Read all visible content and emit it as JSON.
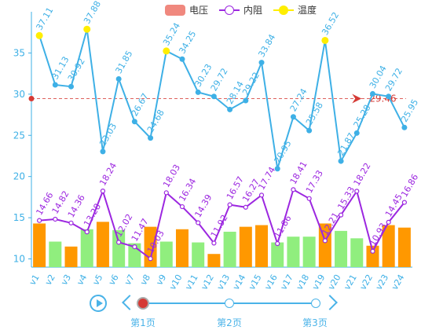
{
  "chart_data": {
    "type": "bar",
    "categories": [
      "v1",
      "v2",
      "v3",
      "v4",
      "v5",
      "v6",
      "v7",
      "v8",
      "v9",
      "v10",
      "v11",
      "v12",
      "v13",
      "v14",
      "v15",
      "v16",
      "v17",
      "v18",
      "v19",
      "v20",
      "v21",
      "v22",
      "v23",
      "v24"
    ],
    "ylim": [
      9,
      40
    ],
    "yticks": [
      10,
      15,
      20,
      25,
      30,
      35
    ],
    "grid": false,
    "legend_position": "top-center",
    "series": [
      {
        "name": "电压",
        "type": "bar",
        "color": "#ff9800",
        "alt_color": "#90ee7e",
        "values": [
          14.3,
          12.1,
          11.5,
          13.6,
          14.5,
          13.5,
          11.9,
          13.9,
          12.1,
          13.6,
          12.0,
          10.6,
          13.3,
          13.9,
          14.1,
          12.0,
          12.7,
          12.7,
          14.3,
          13.4,
          12.5,
          11.6,
          14.1,
          13.8
        ],
        "alt_categories": [
          "v2",
          "v4",
          "v6",
          "v7",
          "v9",
          "v11",
          "v13",
          "v16",
          "v17",
          "v18",
          "v20",
          "v21"
        ]
      },
      {
        "name": "内阻",
        "type": "line",
        "color": "#9c27e0",
        "values": [
          14.66,
          14.82,
          14.36,
          13.28,
          18.24,
          12.02,
          11.47,
          10.03,
          18.03,
          16.34,
          14.39,
          11.92,
          16.57,
          16.27,
          17.74,
          11.86,
          18.41,
          17.33,
          12.21,
          15.33,
          18.22,
          10.93,
          14.45,
          16.86
        ],
        "labels": [
          "14.66",
          "14.82",
          "14.36",
          "13.28",
          "18.24",
          "12.02",
          "11.47",
          "10.03",
          "18.03",
          "16.34",
          "14.39",
          "11.92",
          "16.57",
          "16.27",
          "17.74",
          "11.86",
          "18.41",
          "17.33",
          "12.21",
          "15.33",
          "18.22",
          "10.93",
          "14.45",
          "16.86"
        ]
      },
      {
        "name": "温度",
        "type": "line",
        "color": "#3eb0e6",
        "marker_color": "#ffee00",
        "values": [
          37.11,
          31.13,
          30.92,
          37.88,
          23.03,
          31.85,
          26.67,
          24.68,
          35.24,
          34.25,
          30.23,
          29.72,
          28.14,
          29.22,
          33.84,
          20.95,
          27.24,
          25.58,
          36.52,
          21.87,
          25.28,
          30.04,
          29.72,
          25.95
        ],
        "labels": [
          "37.11",
          "31.13",
          "30.92",
          "37.88",
          "23.03",
          "31.85",
          "26.67",
          "24.68",
          "35.24",
          "34.25",
          "30.23",
          "29.72",
          "28.14",
          "29.22",
          "33.84",
          "20.95",
          "27.24",
          "25.58",
          "36.52",
          "21.87",
          "25.28",
          "30.04",
          "29.72",
          "25.95"
        ],
        "highlight_categories": [
          "v1",
          "v4",
          "v9",
          "v19"
        ]
      }
    ],
    "markline": {
      "value": 29.46,
      "label": "29.46",
      "color": "#d53a35"
    }
  },
  "legend": {
    "items": [
      {
        "label": "电压",
        "kind": "bar",
        "color": "#f0887e"
      },
      {
        "label": "内阻",
        "kind": "line",
        "color": "#9c27e0"
      },
      {
        "label": "温度",
        "kind": "line",
        "color": "#ffee00"
      }
    ]
  },
  "timeline": {
    "pages": [
      "第1页",
      "第2页",
      "第3页"
    ],
    "active_index": 0,
    "color": "#4ab3e8"
  }
}
